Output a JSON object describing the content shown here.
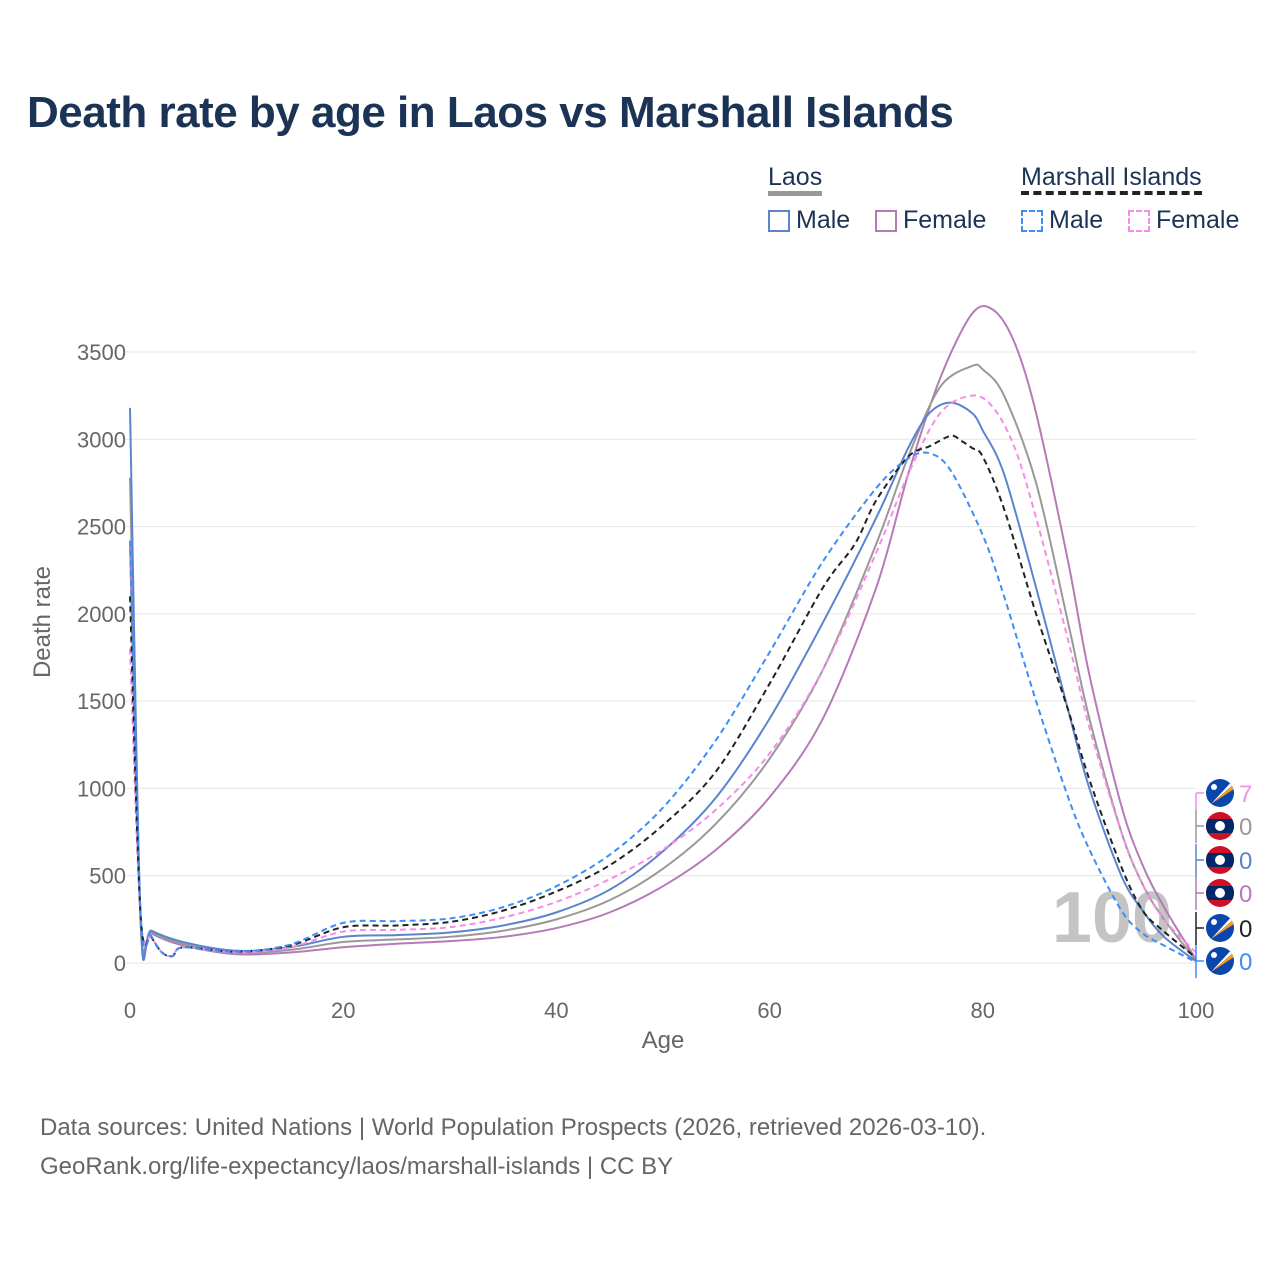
{
  "title": "Death rate by age in Laos vs Marshall Islands",
  "legend": {
    "groups": [
      {
        "name": "Laos",
        "color": "#999999",
        "items": [
          {
            "label": "Male",
            "color": "#5b84cf",
            "dashed": false
          },
          {
            "label": "Female",
            "color": "#b57ab8",
            "dashed": false
          }
        ]
      },
      {
        "name": "Marshall Islands",
        "color": "#222222",
        "items": [
          {
            "label": "Male",
            "color": "#3d8ef5",
            "dashed": true
          },
          {
            "label": "Female",
            "color": "#f78be8",
            "dashed": true
          }
        ]
      }
    ]
  },
  "source": {
    "line1": "Data sources: United Nations | World Population Prospects (2026, retrieved 2026-03-10).",
    "line2": "GeoRank.org/life-expectancy/laos/marshall-islands | CC BY"
  },
  "chart_data": {
    "type": "line",
    "xlabel": "Age",
    "ylabel": "Death rate",
    "xlim": [
      0,
      100
    ],
    "ylim": [
      0,
      3800
    ],
    "xticks": [
      0,
      20,
      40,
      60,
      80,
      100
    ],
    "yticks": [
      0,
      500,
      1000,
      1500,
      2000,
      2500,
      3000,
      3500
    ],
    "grid": true,
    "hover_age_label": "100",
    "series": [
      {
        "name": "Laos Female",
        "color": "#b57ab8",
        "dashed": false,
        "end_label": "0",
        "x": [
          0,
          1,
          2,
          5,
          10,
          15,
          20,
          25,
          30,
          35,
          40,
          45,
          50,
          55,
          60,
          65,
          70,
          73,
          76,
          79,
          81,
          83,
          85,
          88,
          90,
          93,
          95,
          97,
          100
        ],
        "y": [
          2400,
          230,
          170,
          100,
          50,
          60,
          90,
          110,
          125,
          150,
          200,
          290,
          440,
          650,
          950,
          1400,
          2150,
          2800,
          3350,
          3720,
          3740,
          3550,
          3150,
          2300,
          1650,
          900,
          560,
          320,
          20
        ]
      },
      {
        "name": "Laos",
        "color": "#999999",
        "dashed": false,
        "end_label": "0",
        "x": [
          0,
          1,
          2,
          5,
          10,
          15,
          20,
          25,
          30,
          35,
          40,
          45,
          50,
          55,
          60,
          65,
          70,
          73,
          76,
          79,
          80,
          82,
          85,
          88,
          90,
          93,
          95,
          97,
          100
        ],
        "y": [
          2780,
          235,
          175,
          110,
          60,
          75,
          120,
          135,
          150,
          185,
          250,
          360,
          540,
          800,
          1170,
          1680,
          2400,
          2900,
          3300,
          3420,
          3400,
          3250,
          2750,
          1950,
          1400,
          750,
          450,
          250,
          15
        ]
      },
      {
        "name": "Laos Male",
        "color": "#5b84cf",
        "dashed": false,
        "end_label": "0",
        "x": [
          0,
          1,
          2,
          5,
          10,
          15,
          20,
          25,
          30,
          35,
          40,
          45,
          50,
          55,
          60,
          65,
          70,
          73,
          75,
          77,
          79,
          80,
          82,
          85,
          88,
          90,
          93,
          95,
          97,
          100
        ],
        "y": [
          3180,
          240,
          185,
          120,
          70,
          90,
          150,
          160,
          175,
          215,
          290,
          420,
          640,
          950,
          1400,
          1950,
          2550,
          2950,
          3150,
          3210,
          3150,
          3050,
          2800,
          2150,
          1450,
          1000,
          500,
          300,
          150,
          10
        ]
      },
      {
        "name": "Marshall Islands Female",
        "color": "#f78be8",
        "dashed": true,
        "end_label": "7",
        "x": [
          0,
          1,
          2,
          3,
          4,
          5,
          10,
          15,
          20,
          25,
          30,
          35,
          40,
          45,
          50,
          55,
          60,
          65,
          70,
          73,
          76,
          79,
          81,
          83,
          85,
          88,
          90,
          93,
          95,
          97,
          100
        ],
        "y": [
          1800,
          260,
          150,
          60,
          40,
          90,
          60,
          90,
          180,
          190,
          205,
          260,
          350,
          480,
          650,
          880,
          1200,
          1680,
          2350,
          2800,
          3150,
          3250,
          3180,
          2950,
          2550,
          1850,
          1350,
          750,
          450,
          250,
          60
        ]
      },
      {
        "name": "Marshall Islands",
        "color": "#222222",
        "dashed": true,
        "end_label": "0",
        "x": [
          0,
          1,
          2,
          3,
          4,
          5,
          10,
          15,
          20,
          25,
          30,
          35,
          40,
          45,
          50,
          55,
          60,
          65,
          68,
          70,
          73,
          75,
          77,
          78,
          79,
          80,
          82,
          85,
          88,
          90,
          93,
          95,
          97,
          100
        ],
        "y": [
          2100,
          270,
          150,
          60,
          40,
          90,
          65,
          100,
          205,
          215,
          235,
          300,
          410,
          560,
          790,
          1100,
          1600,
          2150,
          2400,
          2650,
          2900,
          2960,
          3020,
          2990,
          2950,
          2900,
          2600,
          2000,
          1450,
          1050,
          550,
          300,
          180,
          30
        ]
      },
      {
        "name": "Marshall Islands Male",
        "color": "#3d8ef5",
        "dashed": true,
        "end_label": "0",
        "x": [
          0,
          1,
          2,
          3,
          4,
          5,
          10,
          15,
          20,
          25,
          30,
          35,
          40,
          45,
          50,
          55,
          60,
          65,
          70,
          73,
          75,
          77,
          80,
          82,
          85,
          88,
          90,
          93,
          95,
          97,
          100
        ],
        "y": [
          2420,
          280,
          155,
          60,
          40,
          90,
          65,
          105,
          230,
          240,
          255,
          320,
          440,
          620,
          890,
          1280,
          1780,
          2300,
          2720,
          2890,
          2920,
          2820,
          2450,
          2100,
          1500,
          950,
          650,
          300,
          170,
          100,
          5
        ]
      }
    ]
  }
}
